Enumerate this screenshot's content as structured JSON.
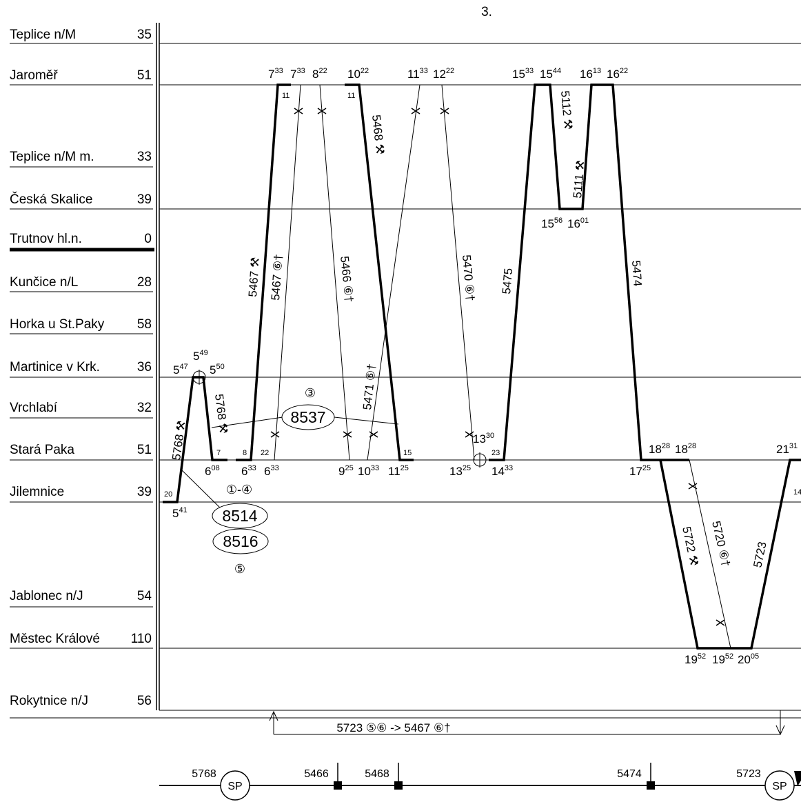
{
  "page_number": "3.",
  "stations": [
    {
      "name": "Teplice n/M",
      "km": "35"
    },
    {
      "name": "Jaroměř",
      "km": "51"
    },
    {
      "name": "Teplice n/M m.",
      "km": "33"
    },
    {
      "name": "Česká Skalice",
      "km": "39"
    },
    {
      "name": "Trutnov hl.n.",
      "km": "0"
    },
    {
      "name": "Kunčice n/L",
      "km": "28"
    },
    {
      "name": "Horka u St.Paky",
      "km": "58"
    },
    {
      "name": "Martinice v Krk.",
      "km": "36"
    },
    {
      "name": "Vrchlabí",
      "km": "32"
    },
    {
      "name": "Stará Paka",
      "km": "51"
    },
    {
      "name": "Jilemnice",
      "km": "39"
    },
    {
      "name": "Jablonec n/J",
      "km": "54"
    },
    {
      "name": "Městec Králové",
      "km": "110"
    },
    {
      "name": "Rokytnice n/J",
      "km": "56"
    }
  ],
  "times": [
    {
      "h": "5",
      "m": "47"
    },
    {
      "h": "5",
      "m": "49"
    },
    {
      "h": "5",
      "m": "50"
    },
    {
      "h": "5",
      "m": "41"
    },
    {
      "h": "6",
      "m": "08"
    },
    {
      "h": "6",
      "m": "33"
    },
    {
      "h": "6",
      "m": "33"
    },
    {
      "h": "7",
      "m": "33"
    },
    {
      "h": "7",
      "m": "33"
    },
    {
      "h": "8",
      "m": "22"
    },
    {
      "h": "10",
      "m": "22"
    },
    {
      "h": "11",
      "m": "33"
    },
    {
      "h": "12",
      "m": "22"
    },
    {
      "h": "15",
      "m": "33"
    },
    {
      "h": "15",
      "m": "44"
    },
    {
      "h": "16",
      "m": "13"
    },
    {
      "h": "16",
      "m": "22"
    },
    {
      "h": "15",
      "m": "56"
    },
    {
      "h": "16",
      "m": "01"
    },
    {
      "h": "9",
      "m": "25"
    },
    {
      "h": "10",
      "m": "33"
    },
    {
      "h": "11",
      "m": "25"
    },
    {
      "h": "13",
      "m": "25"
    },
    {
      "h": "13",
      "m": "30"
    },
    {
      "h": "14",
      "m": "33"
    },
    {
      "h": "17",
      "m": "25"
    },
    {
      "h": "18",
      "m": "28"
    },
    {
      "h": "18",
      "m": "28"
    },
    {
      "h": "21",
      "m": "31"
    },
    {
      "h": "19",
      "m": "52"
    },
    {
      "h": "19",
      "m": "52"
    },
    {
      "h": "20",
      "m": "05"
    }
  ],
  "track_numbers": [
    "20",
    "7",
    "8",
    "22",
    "11",
    "11",
    "15",
    "23",
    "14"
  ],
  "trains": [
    {
      "label": "5768",
      "days": "⚒"
    },
    {
      "label": "5768",
      "days": "⚒"
    },
    {
      "label": "5467",
      "days": "⚒"
    },
    {
      "label": "5467",
      "days": "⑥†"
    },
    {
      "label": "5466",
      "days": "⑥†"
    },
    {
      "label": "5468",
      "days": "⚒"
    },
    {
      "label": "5471",
      "days": "⑥†"
    },
    {
      "label": "5470",
      "days": "⑥†"
    },
    {
      "label": "5475",
      "days": ""
    },
    {
      "label": "5112",
      "days": "⚒"
    },
    {
      "label": "5111",
      "days": "⚒"
    },
    {
      "label": "5474",
      "days": ""
    },
    {
      "label": "5722",
      "days": "⚒"
    },
    {
      "label": "5720",
      "days": "⑥†"
    },
    {
      "label": "5723",
      "days": ""
    }
  ],
  "vehicles": [
    {
      "number": "8537",
      "days": "③"
    },
    {
      "number": "8514",
      "days": "①-④"
    },
    {
      "number": "8516",
      "days": "⑤"
    }
  ],
  "transfer_note": "5723 ⑤⑥  ->  5467 ⑥†",
  "timeline_labels": [
    {
      "label": "5768",
      "badge": "SP"
    },
    {
      "label": "5466",
      "badge": ""
    },
    {
      "label": "5468",
      "badge": ""
    },
    {
      "label": "5474",
      "badge": ""
    },
    {
      "label": "5723",
      "badge": "SP"
    }
  ]
}
